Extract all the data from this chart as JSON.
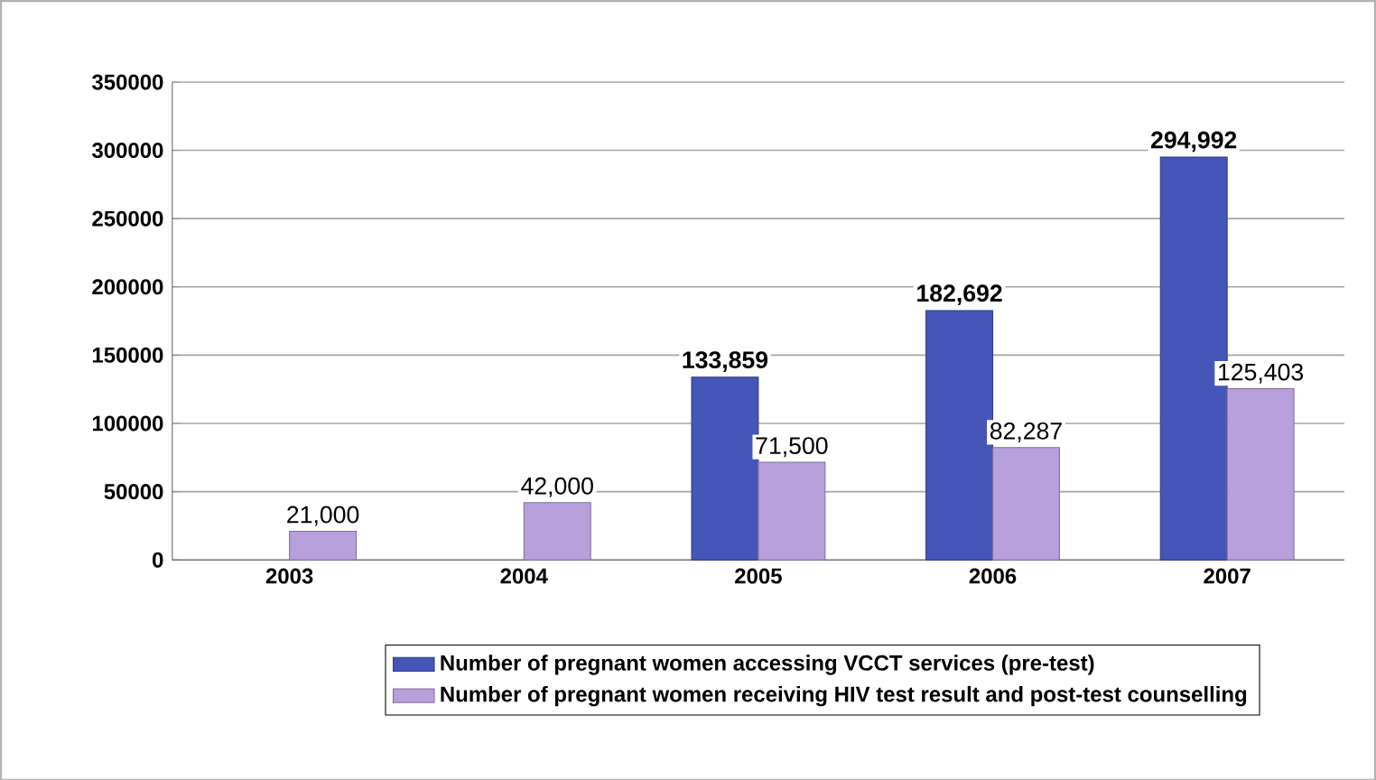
{
  "chart_data": {
    "type": "bar",
    "categories": [
      "2003",
      "2004",
      "2005",
      "2006",
      "2007"
    ],
    "series": [
      {
        "name": "Number of pregnant women accessing VCCT services (pre-test)",
        "color": "#4656b8",
        "values": [
          null,
          null,
          133859,
          182692,
          294992
        ],
        "value_labels": [
          null,
          null,
          "133,859",
          "182,692",
          "294,992"
        ]
      },
      {
        "name": "Number of pregnant women receiving HIV test result and post-test counselling",
        "color": "#b7a0dc",
        "values": [
          21000,
          42000,
          71500,
          82287,
          125403
        ],
        "value_labels": [
          "21,000",
          "42,000",
          "71,500",
          "82,287",
          "125,403"
        ]
      }
    ],
    "ylim": [
      0,
      350000
    ],
    "yticks": [
      0,
      50000,
      100000,
      150000,
      200000,
      250000,
      300000,
      350000
    ],
    "grid": "y",
    "legend": "bottom"
  }
}
